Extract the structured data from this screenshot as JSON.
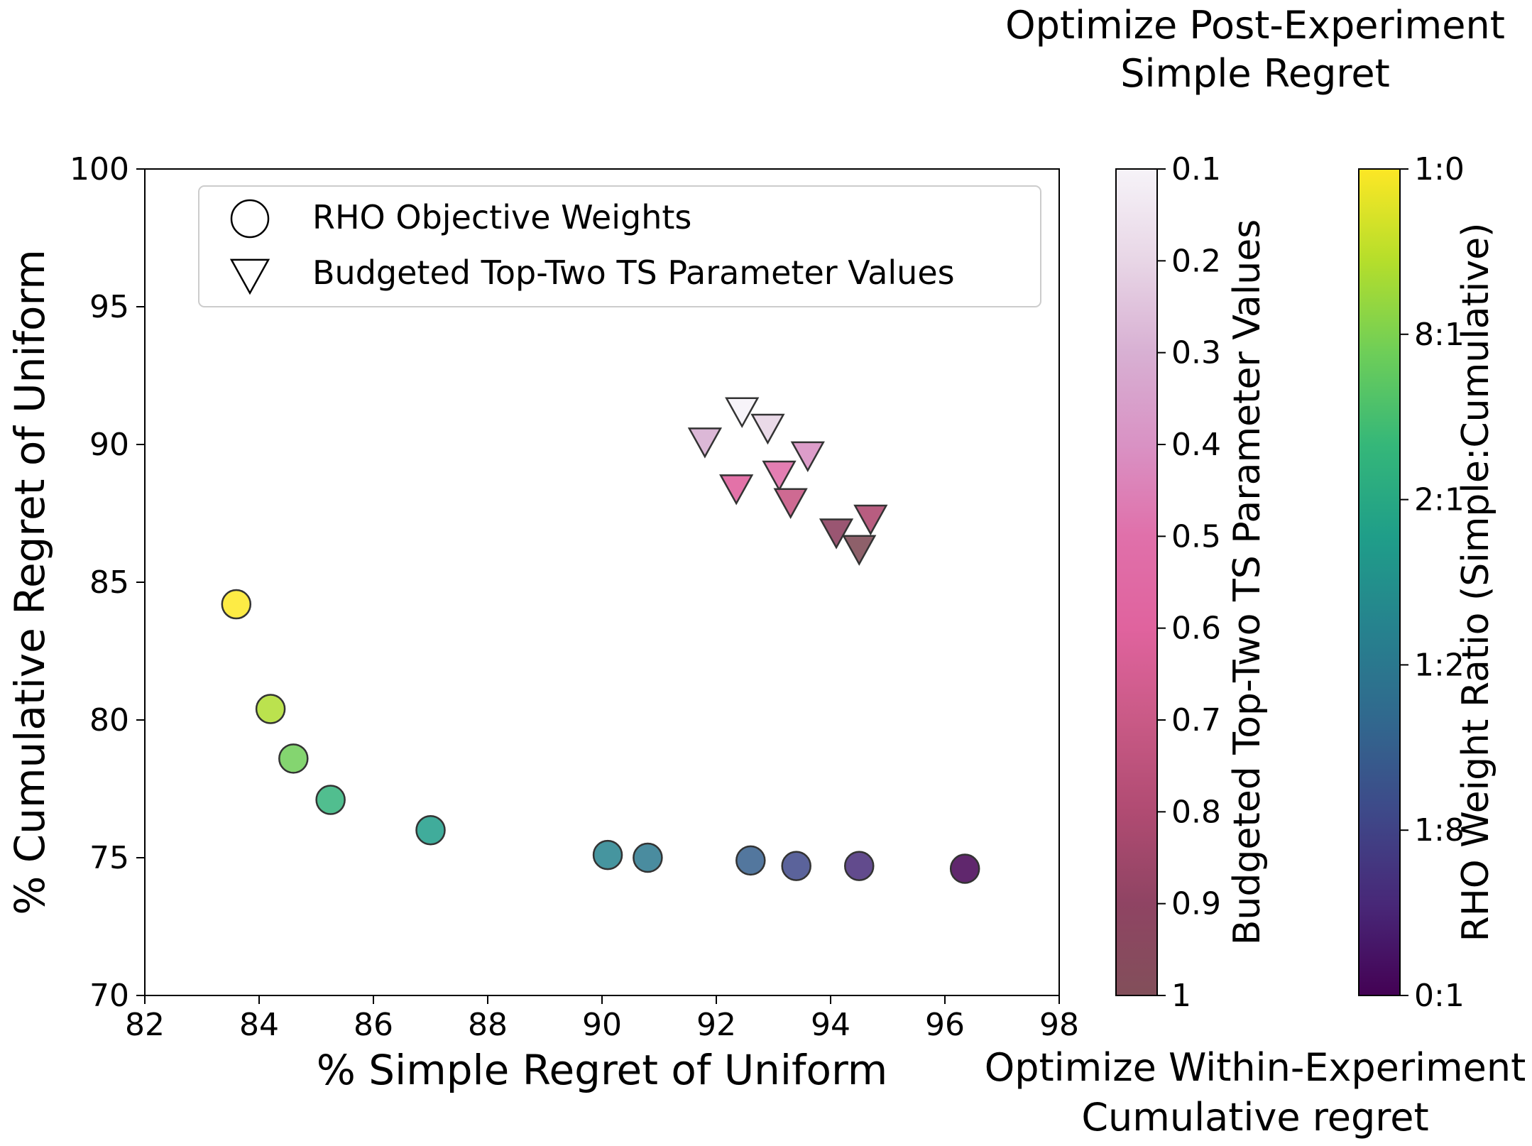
{
  "chart_data": {
    "type": "scatter",
    "xlabel": "% Simple Regret of Uniform",
    "ylabel": "% Cumulative Regret of Uniform",
    "xlim": [
      82,
      98
    ],
    "ylim": [
      70,
      100
    ],
    "xticks": [
      82,
      84,
      86,
      88,
      90,
      92,
      94,
      96,
      98
    ],
    "yticks": [
      70,
      75,
      80,
      85,
      90,
      95,
      100
    ],
    "grid": false,
    "legend": {
      "placement": "top-left",
      "entries": [
        {
          "marker": "circle",
          "label": "RHO Objective Weights"
        },
        {
          "marker": "triangle-down",
          "label": "Budgeted Top-Two TS Parameter Values"
        }
      ]
    },
    "annotations": {
      "top": "Optimize Post-Experiment\nSimple Regret",
      "bottom": "Optimize Within-Experiment\nCumulative regret"
    },
    "series": [
      {
        "marker": "circle",
        "colormap": "viridis",
        "points": [
          {
            "x": 83.6,
            "y": 84.2,
            "c": 1.0
          },
          {
            "x": 84.2,
            "y": 80.4,
            "c": 0.88
          },
          {
            "x": 84.6,
            "y": 78.6,
            "c": 0.78
          },
          {
            "x": 85.25,
            "y": 77.1,
            "c": 0.65
          },
          {
            "x": 87.0,
            "y": 76.0,
            "c": 0.55
          },
          {
            "x": 90.1,
            "y": 75.1,
            "c": 0.45
          },
          {
            "x": 90.8,
            "y": 75.0,
            "c": 0.4
          },
          {
            "x": 92.6,
            "y": 74.9,
            "c": 0.3
          },
          {
            "x": 93.4,
            "y": 74.7,
            "c": 0.22
          },
          {
            "x": 94.5,
            "y": 74.7,
            "c": 0.12
          },
          {
            "x": 96.35,
            "y": 74.6,
            "c": 0.0
          }
        ]
      },
      {
        "marker": "triangle-down",
        "colormap": "pink-magenta",
        "points": [
          {
            "x": 92.45,
            "y": 91.2,
            "p": 0.1
          },
          {
            "x": 92.9,
            "y": 90.6,
            "p": 0.2
          },
          {
            "x": 91.8,
            "y": 90.1,
            "p": 0.3
          },
          {
            "x": 93.6,
            "y": 89.6,
            "p": 0.4
          },
          {
            "x": 93.1,
            "y": 88.9,
            "p": 0.5
          },
          {
            "x": 92.35,
            "y": 88.4,
            "p": 0.6
          },
          {
            "x": 93.3,
            "y": 87.9,
            "p": 0.7
          },
          {
            "x": 94.7,
            "y": 87.3,
            "p": 0.8
          },
          {
            "x": 94.1,
            "y": 86.8,
            "p": 0.9
          },
          {
            "x": 94.5,
            "y": 86.2,
            "p": 1.0
          }
        ]
      }
    ],
    "colorbars": [
      {
        "label": "Budgeted Top-Two TS Parameter Values",
        "tick_labels": [
          "0.1",
          "0.2",
          "0.3",
          "0.4",
          "0.5",
          "0.6",
          "0.7",
          "0.8",
          "0.9",
          "1"
        ],
        "colors": [
          "#f6f3f8",
          "#e8d6e6",
          "#d8b0d3",
          "#d992c4",
          "#e070aa",
          "#e0639e",
          "#c95a86",
          "#b04b72",
          "#8f4463",
          "#824f5a"
        ]
      },
      {
        "label": "RHO Weight Ratio (Simple:Cumulative)",
        "tick_labels": [
          "1:0",
          "8:1",
          "2:1",
          "1:2",
          "1:8",
          "0:1"
        ],
        "colors": [
          "#fde725",
          "#b5de2b",
          "#6ece58",
          "#35b779",
          "#1f9e89",
          "#26828e",
          "#31688e",
          "#3e4989",
          "#482878",
          "#440154"
        ]
      }
    ]
  }
}
